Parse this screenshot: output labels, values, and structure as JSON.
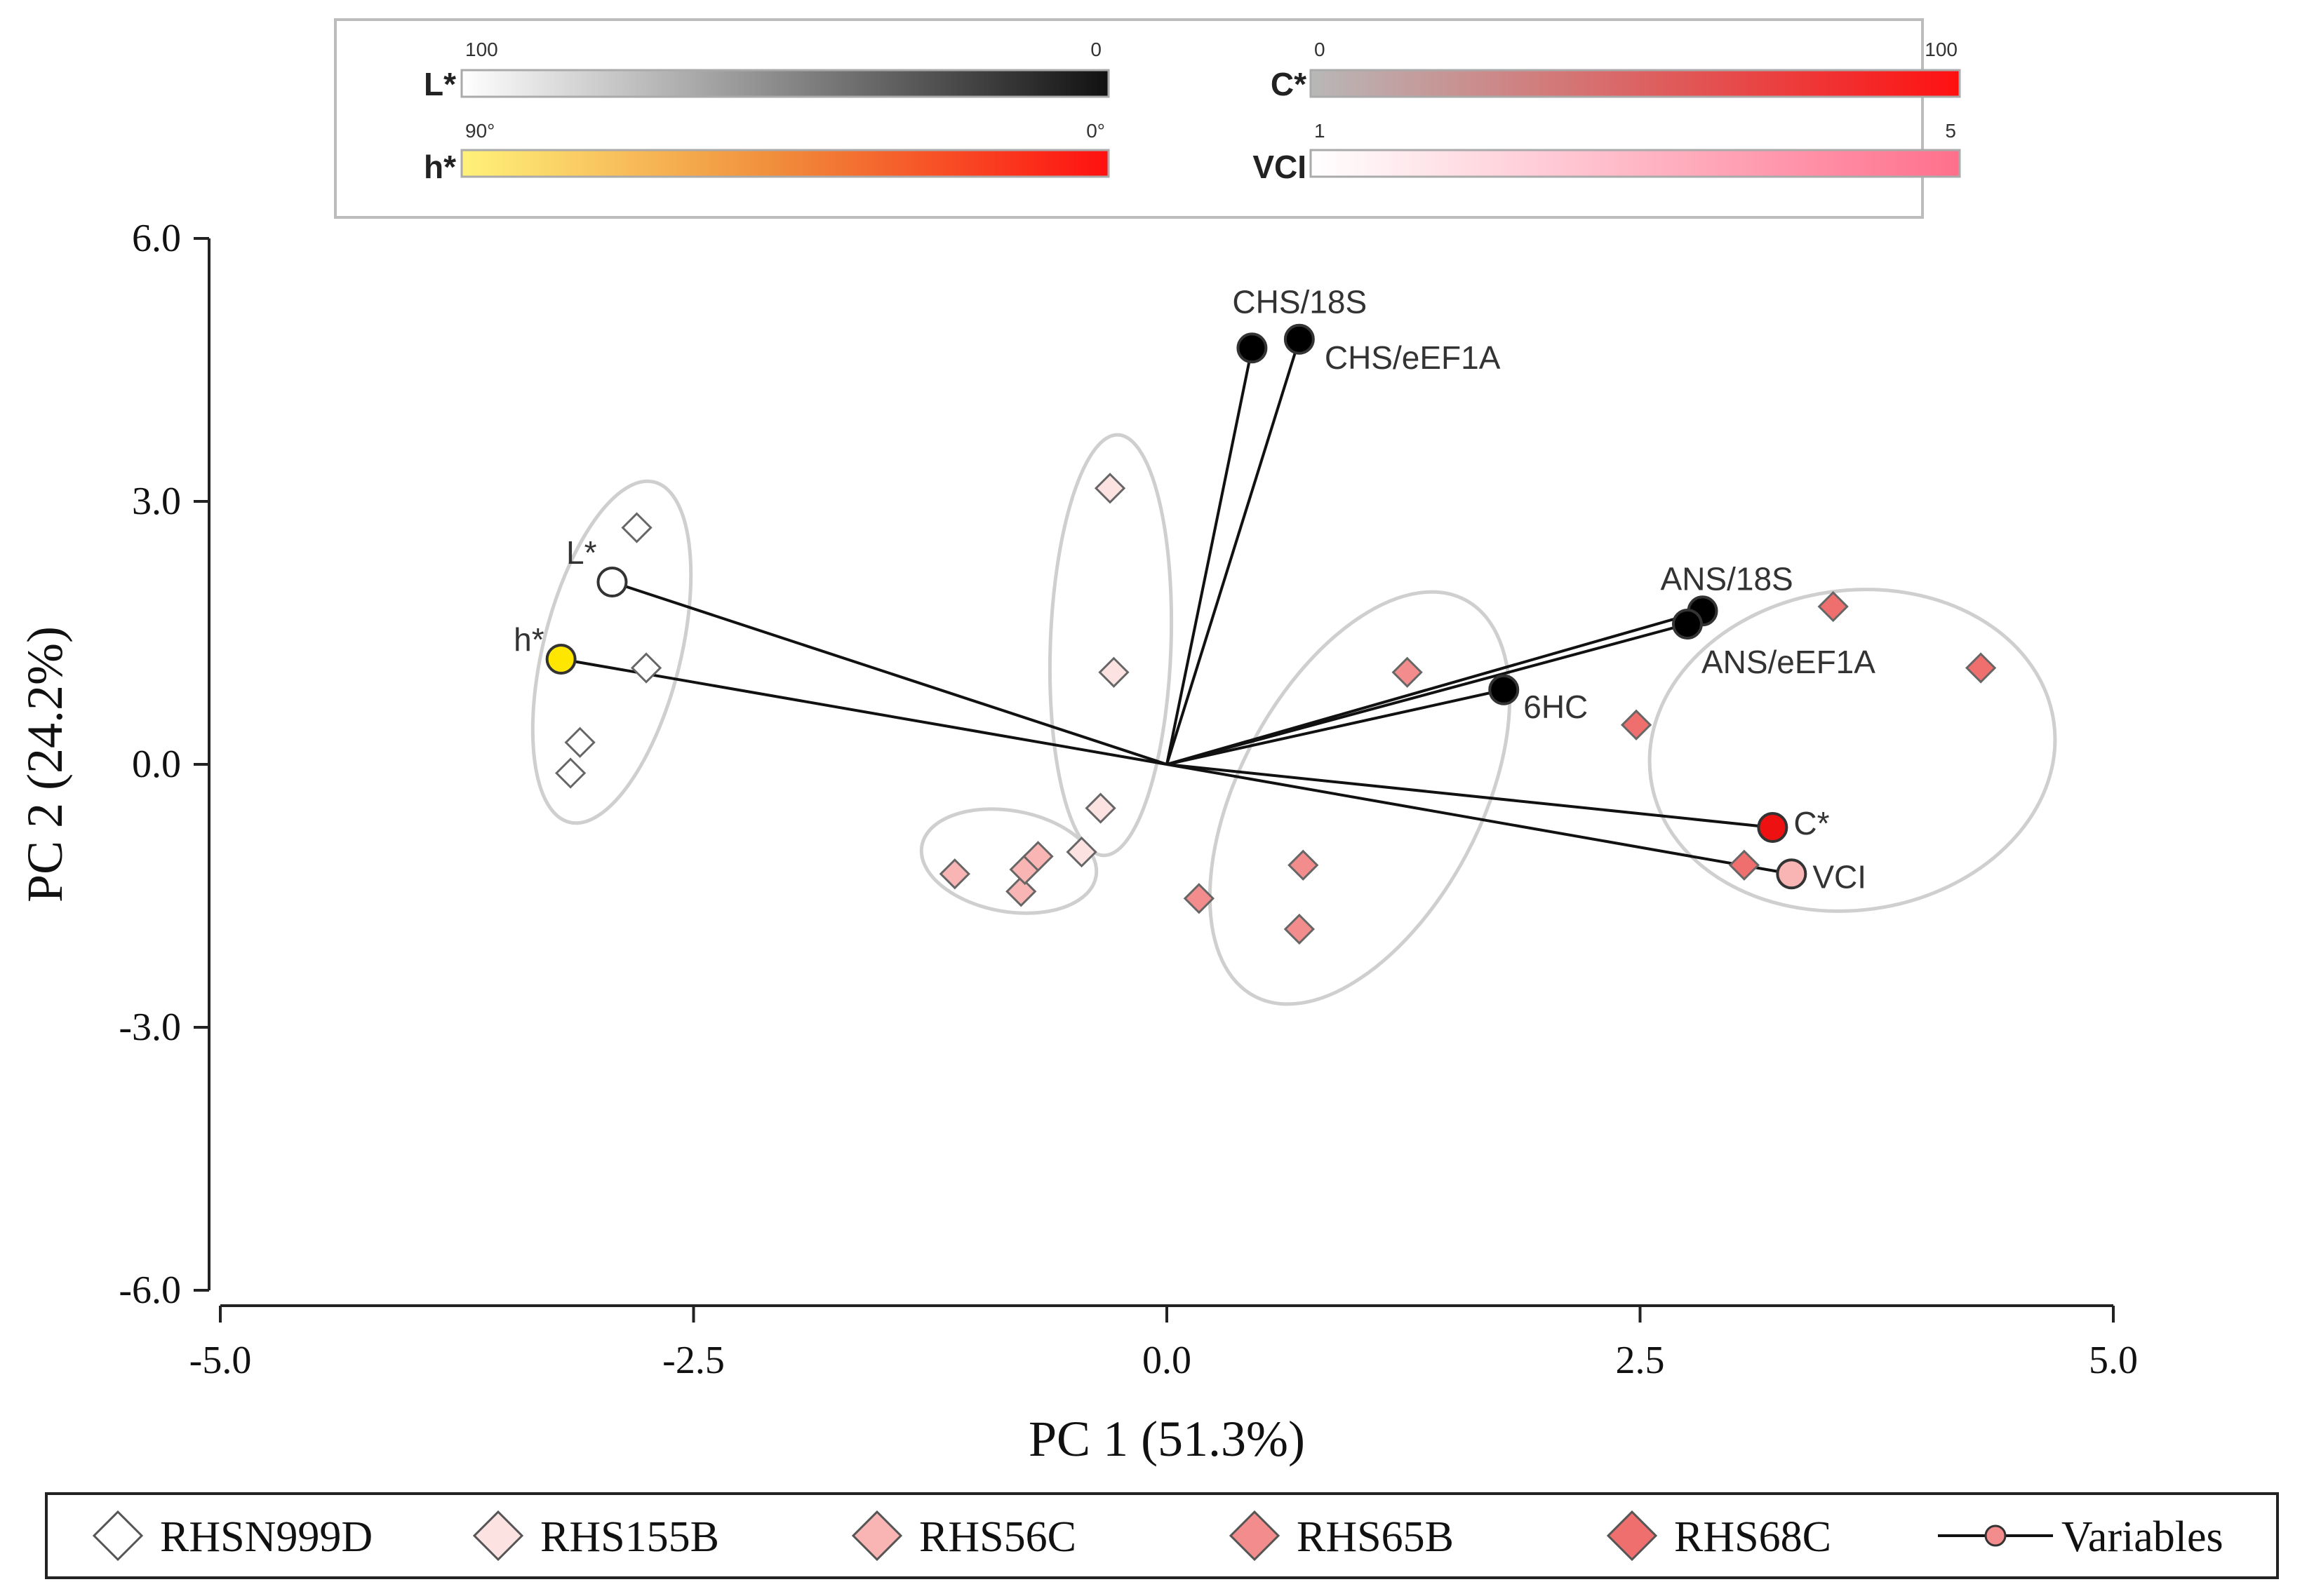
{
  "chart_data": {
    "type": "scatter",
    "subtype": "pca-biplot",
    "xlabel": "PC 1 (51.3%)",
    "ylabel": "PC 2 (24.2%)",
    "xlim": [
      -5.0,
      5.0
    ],
    "ylim": [
      -6.0,
      6.0
    ],
    "x_ticks": [
      "-5.0",
      "-2.5",
      "0.0",
      "2.5",
      "5.0"
    ],
    "y_ticks": [
      "6.0",
      "3.0",
      "0.0",
      "-3.0",
      "-6.0"
    ],
    "grid": false,
    "color_scales": [
      {
        "label": "L*",
        "min_label": "100",
        "max_label": "0",
        "colors": [
          "#ffffff",
          "#111111"
        ]
      },
      {
        "label": "C*",
        "min_label": "0",
        "max_label": "100",
        "colors": [
          "#b8b8b8",
          "#ff1010"
        ]
      },
      {
        "label": "h*",
        "min_label": "90°",
        "max_label": "0°",
        "colors": [
          "#fff27a",
          "#f08a3a",
          "#ff1010"
        ]
      },
      {
        "label": "VCI",
        "min_label": "1",
        "max_label": "5",
        "colors": [
          "#ffffff",
          "#ff6f8c"
        ]
      }
    ],
    "series": [
      {
        "name": "RHSN999D",
        "marker": "diamond",
        "color": "#ffffff",
        "points": [
          [
            -2.8,
            2.7
          ],
          [
            -2.75,
            1.1
          ],
          [
            -3.1,
            0.25
          ],
          [
            -3.15,
            -0.1
          ]
        ]
      },
      {
        "name": "RHS155B",
        "marker": "diamond",
        "color": "#fde2e2",
        "points": [
          [
            -0.3,
            3.15
          ],
          [
            -0.28,
            1.05
          ],
          [
            -0.35,
            -0.5
          ],
          [
            -0.45,
            -1.0
          ]
        ]
      },
      {
        "name": "RHS56C",
        "marker": "diamond",
        "color": "#f9b4b4",
        "points": [
          [
            -1.12,
            -1.25
          ],
          [
            -0.77,
            -1.45
          ],
          [
            -0.75,
            -1.2
          ],
          [
            -0.68,
            -1.05
          ]
        ]
      },
      {
        "name": "RHS65B",
        "marker": "diamond",
        "color": "#f38c8c",
        "points": [
          [
            1.27,
            1.05
          ],
          [
            0.72,
            -1.15
          ],
          [
            0.17,
            -1.53
          ],
          [
            0.7,
            -1.88
          ]
        ]
      },
      {
        "name": "RHS68C",
        "marker": "diamond",
        "color": "#ef6e6e",
        "points": [
          [
            3.52,
            1.8
          ],
          [
            4.3,
            1.1
          ],
          [
            2.48,
            0.45
          ],
          [
            3.05,
            -1.15
          ]
        ]
      }
    ],
    "variables": [
      {
        "label": "CHS/18S",
        "x": 0.45,
        "y": 4.75,
        "color": "#000000"
      },
      {
        "label": "CHS/eEF1A",
        "x": 0.7,
        "y": 4.85,
        "color": "#000000"
      },
      {
        "label": "ANS/18S",
        "x": 2.83,
        "y": 1.75,
        "color": "#000000"
      },
      {
        "label": "ANS/eEF1A",
        "x": 2.75,
        "y": 1.6,
        "color": "#000000"
      },
      {
        "label": "6HC",
        "x": 1.78,
        "y": 0.85,
        "color": "#000000"
      },
      {
        "label": "C*",
        "x": 3.2,
        "y": -0.72,
        "color": "#ee1111"
      },
      {
        "label": "VCI",
        "x": 3.3,
        "y": -1.25,
        "color": "#f9b4b4"
      },
      {
        "label": "L*",
        "x": -2.93,
        "y": 2.08,
        "color": "#ffffff"
      },
      {
        "label": "h*",
        "x": -3.2,
        "y": 1.2,
        "color": "#ffe600"
      }
    ],
    "legend": {
      "placement": "bottom",
      "entries": [
        "RHSN999D",
        "RHS155B",
        "RHS56C",
        "RHS65B",
        "RHS68C",
        "Variables"
      ]
    }
  }
}
